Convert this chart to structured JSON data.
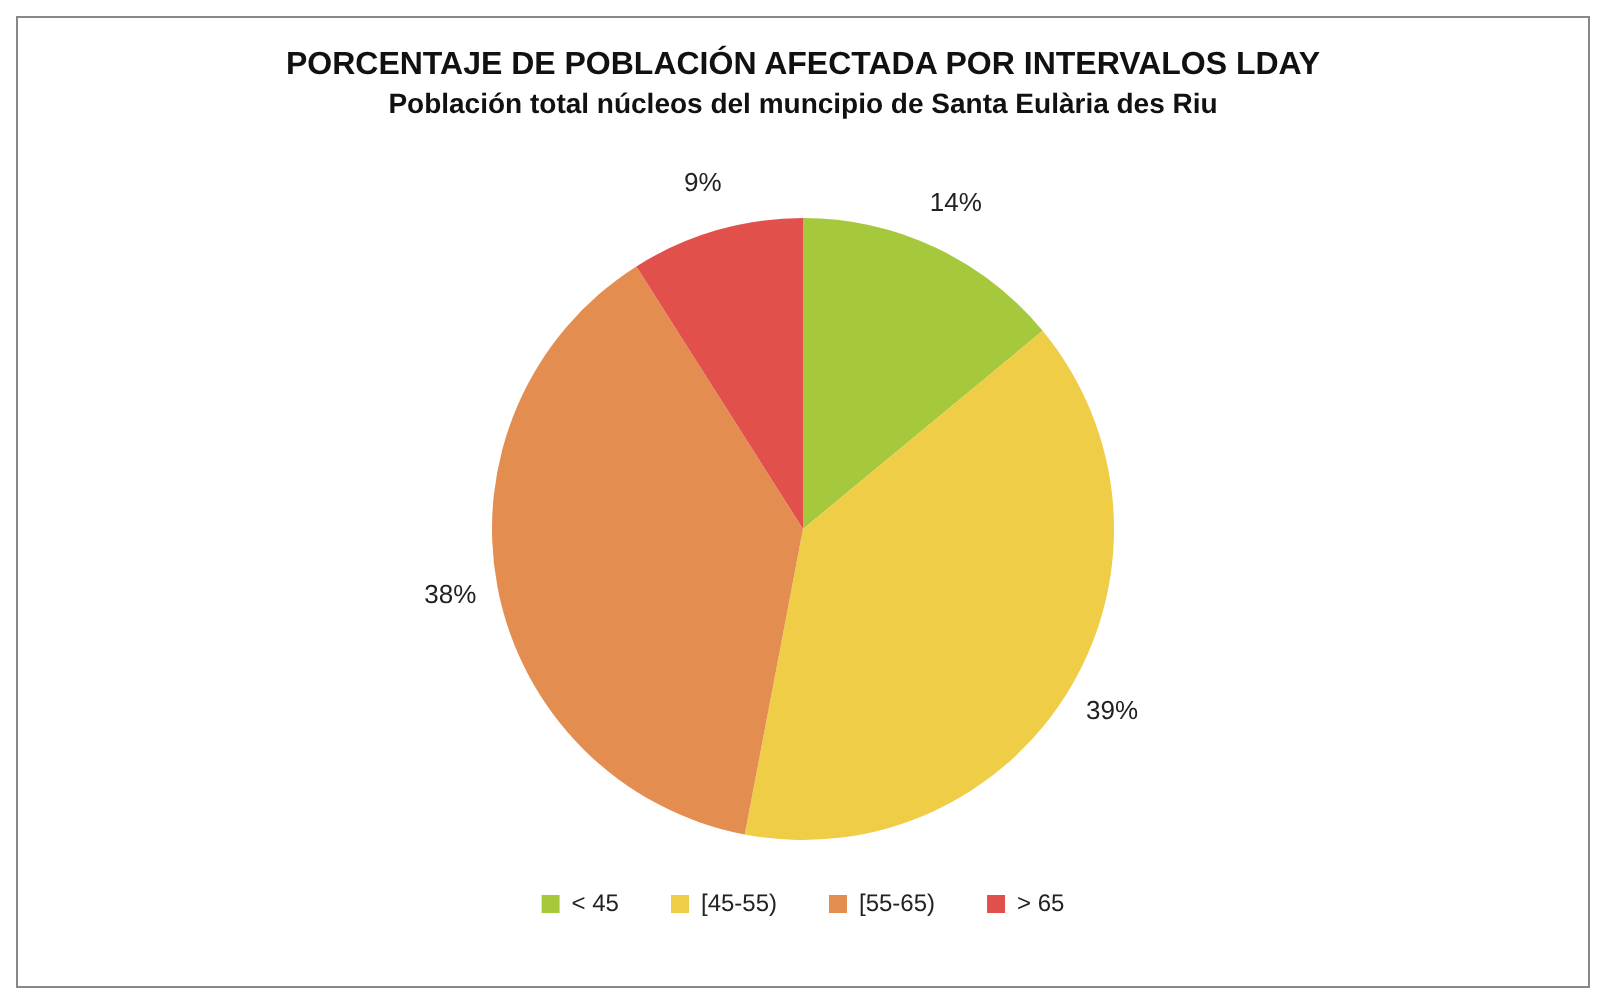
{
  "chart_data": {
    "type": "pie",
    "title": "PORCENTAJE DE POBLACIÓN AFECTADA POR INTERVALOS LDAY",
    "subtitle": "Población total núcleos del muncipio de Santa Eulària des Riu",
    "categories": [
      "< 45",
      "[45-55)",
      "[55-65)",
      "> 65"
    ],
    "values": [
      14,
      39,
      38,
      9
    ],
    "colors": [
      "#a6c83c",
      "#f0cd47",
      "#e38d50",
      "#e2504b"
    ],
    "value_labels": [
      "14%",
      "39%",
      "38%",
      "9%"
    ],
    "legend": "bottom"
  }
}
